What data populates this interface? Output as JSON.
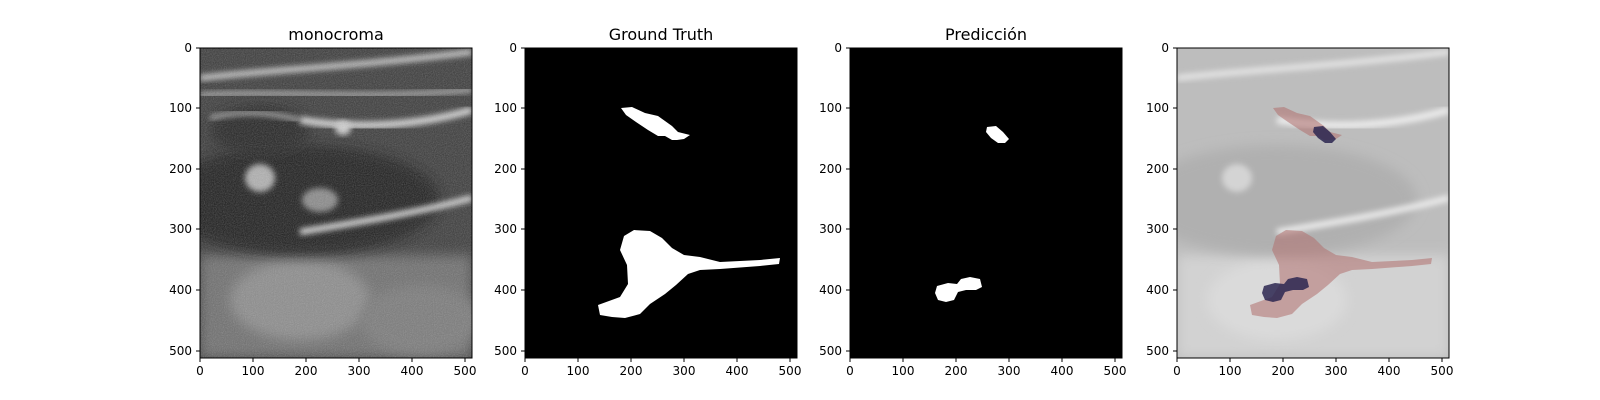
{
  "figure": {
    "panels": [
      {
        "title": "monocroma",
        "kind": "ultrasound"
      },
      {
        "title": "Ground Truth",
        "kind": "mask-ground-truth"
      },
      {
        "title": "Predicción",
        "kind": "mask-prediction"
      },
      {
        "title": "",
        "kind": "overlay"
      }
    ],
    "axes": {
      "x_ticks": [
        "0",
        "100",
        "200",
        "300",
        "400",
        "500"
      ],
      "y_ticks": [
        "0",
        "100",
        "200",
        "300",
        "400",
        "500"
      ],
      "range": [
        0,
        512
      ]
    },
    "colors": {
      "mask_background": "#000000",
      "mask_foreground": "#ffffff",
      "overlay_ground_truth": "#b0706e",
      "overlay_prediction": "#2b2650"
    }
  }
}
